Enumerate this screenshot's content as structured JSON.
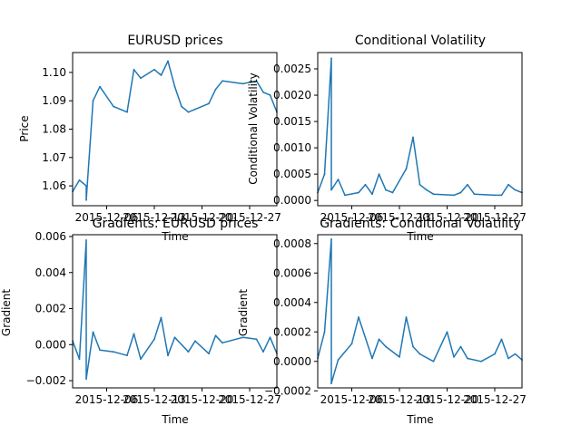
{
  "chart_data": [
    {
      "type": "line",
      "title": "EURUSD prices",
      "xlabel": "Time",
      "ylabel": "Price",
      "x_ticks": [
        "2015-12-06",
        "2015-12-13",
        "2015-12-20",
        "2015-12-27"
      ],
      "y_ticks": [
        "1.06",
        "1.07",
        "1.08",
        "1.09",
        "1.10"
      ],
      "xlim": [
        "2015-12-01",
        "2015-12-31"
      ],
      "ylim": [
        1.053,
        1.107
      ],
      "series_color": "#1f77b4",
      "x": [
        "2015-12-01",
        "2015-12-02",
        "2015-12-03",
        "2015-12-03",
        "2015-12-04",
        "2015-12-05",
        "2015-12-07",
        "2015-12-09",
        "2015-12-10",
        "2015-12-11",
        "2015-12-13",
        "2015-12-14",
        "2015-12-15",
        "2015-12-16",
        "2015-12-17",
        "2015-12-18",
        "2015-12-19",
        "2015-12-21",
        "2015-12-22",
        "2015-12-23",
        "2015-12-26",
        "2015-12-28",
        "2015-12-29",
        "2015-12-30",
        "2015-12-31"
      ],
      "values": [
        1.058,
        1.062,
        1.06,
        1.055,
        1.09,
        1.095,
        1.088,
        1.086,
        1.101,
        1.098,
        1.101,
        1.099,
        1.104,
        1.095,
        1.088,
        1.086,
        1.087,
        1.089,
        1.094,
        1.097,
        1.096,
        1.097,
        1.093,
        1.092,
        1.086
      ]
    },
    {
      "type": "line",
      "title": "Conditional Volatility",
      "xlabel": "Time",
      "ylabel": "Conditional Volatility",
      "x_ticks": [
        "2015-12-06",
        "2015-12-13",
        "2015-12-20",
        "2015-12-27"
      ],
      "y_ticks": [
        "0.0000",
        "0.0005",
        "0.0010",
        "0.0015",
        "0.0020",
        "0.0025"
      ],
      "xlim": [
        "2015-12-01",
        "2015-12-31"
      ],
      "ylim": [
        -0.0001,
        0.00281
      ],
      "series_color": "#1f77b4",
      "x": [
        "2015-12-01",
        "2015-12-02",
        "2015-12-03",
        "2015-12-03",
        "2015-12-04",
        "2015-12-05",
        "2015-12-07",
        "2015-12-08",
        "2015-12-09",
        "2015-12-10",
        "2015-12-11",
        "2015-12-12",
        "2015-12-14",
        "2015-12-15",
        "2015-12-16",
        "2015-12-17",
        "2015-12-18",
        "2015-12-21",
        "2015-12-22",
        "2015-12-23",
        "2015-12-24",
        "2015-12-27",
        "2015-12-28",
        "2015-12-29",
        "2015-12-30",
        "2015-12-31"
      ],
      "values": [
        0.00015,
        0.0005,
        0.0027,
        0.0002,
        0.0004,
        0.0001,
        0.00015,
        0.0003,
        0.00012,
        0.0005,
        0.0002,
        0.00015,
        0.0006,
        0.0012,
        0.0003,
        0.0002,
        0.00012,
        0.0001,
        0.00015,
        0.0003,
        0.00012,
        0.0001,
        0.0001,
        0.0003,
        0.0002,
        0.00015
      ]
    },
    {
      "type": "line",
      "title": "Gradients: EURUSD prices",
      "xlabel": "Time",
      "ylabel": "Gradient",
      "x_ticks": [
        "2015-12-06",
        "2015-12-13",
        "2015-12-20",
        "2015-12-27"
      ],
      "y_ticks": [
        "−0.002",
        "0.000",
        "0.002",
        "0.004",
        "0.006"
      ],
      "xlim": [
        "2015-12-01",
        "2015-12-31"
      ],
      "ylim": [
        -0.0024,
        0.0061
      ],
      "series_color": "#1f77b4",
      "x": [
        "2015-12-01",
        "2015-12-02",
        "2015-12-03",
        "2015-12-03",
        "2015-12-04",
        "2015-12-05",
        "2015-12-07",
        "2015-12-09",
        "2015-12-10",
        "2015-12-11",
        "2015-12-13",
        "2015-12-14",
        "2015-12-15",
        "2015-12-16",
        "2015-12-18",
        "2015-12-19",
        "2015-12-21",
        "2015-12-22",
        "2015-12-23",
        "2015-12-26",
        "2015-12-28",
        "2015-12-29",
        "2015-12-30",
        "2015-12-31"
      ],
      "values": [
        0.0002,
        -0.0008,
        0.0058,
        -0.0019,
        0.0007,
        -0.0003,
        -0.0004,
        -0.0006,
        0.0006,
        -0.0008,
        0.0003,
        0.0015,
        -0.0006,
        0.0004,
        -0.0004,
        0.0002,
        -0.0005,
        0.0005,
        0.0001,
        0.0004,
        0.0003,
        -0.0004,
        0.0004,
        -0.0005
      ]
    },
    {
      "type": "line",
      "title": "Gradients: Conditional Volatility",
      "xlabel": "Time",
      "ylabel": "Gradient",
      "x_ticks": [
        "2015-12-06",
        "2015-12-13",
        "2015-12-20",
        "2015-12-27"
      ],
      "y_ticks": [
        "−0.0002",
        "0.0000",
        "0.0002",
        "0.0004",
        "0.0006",
        "0.0008"
      ],
      "xlim": [
        "2015-12-01",
        "2015-12-31"
      ],
      "ylim": [
        -0.00018,
        0.00086
      ],
      "series_color": "#1f77b4",
      "x": [
        "2015-12-01",
        "2015-12-02",
        "2015-12-03",
        "2015-12-03",
        "2015-12-04",
        "2015-12-06",
        "2015-12-07",
        "2015-12-09",
        "2015-12-10",
        "2015-12-11",
        "2015-12-13",
        "2015-12-14",
        "2015-12-15",
        "2015-12-16",
        "2015-12-18",
        "2015-12-20",
        "2015-12-21",
        "2015-12-22",
        "2015-12-23",
        "2015-12-25",
        "2015-12-27",
        "2015-12-28",
        "2015-12-29",
        "2015-12-30",
        "2015-12-31"
      ],
      "values": [
        2e-05,
        0.0002,
        0.00083,
        -0.00015,
        1e-05,
        0.00012,
        0.0003,
        2e-05,
        0.00015,
        0.0001,
        3e-05,
        0.0003,
        0.0001,
        5e-05,
        0.0,
        0.0002,
        3e-05,
        0.0001,
        2e-05,
        0.0,
        5e-05,
        0.00015,
        2e-05,
        5e-05,
        1e-05
      ]
    }
  ]
}
